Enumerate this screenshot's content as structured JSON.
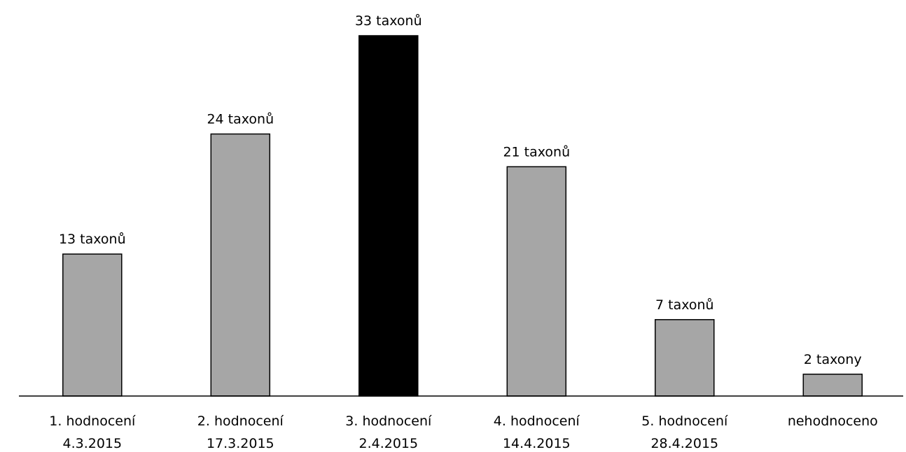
{
  "chart_data": {
    "type": "bar",
    "categories": [
      [
        "1. hodnocení",
        "4.3.2015"
      ],
      [
        "2. hodnocení",
        "17.3.2015"
      ],
      [
        "3. hodnocení",
        "2.4.2015"
      ],
      [
        "4. hodnocení",
        "14.4.2015"
      ],
      [
        "5. hodnocení",
        "28.4.2015"
      ],
      [
        "nehodnoceno"
      ]
    ],
    "values": [
      13,
      24,
      33,
      21,
      7,
      2
    ],
    "data_labels": [
      "13 taxonů",
      "24 taxonů",
      "33 taxonů",
      "21 taxonů",
      "7 taxonů",
      "2 taxony"
    ],
    "bar_colors": [
      "#a6a6a6",
      "#a6a6a6",
      "#000000",
      "#a6a6a6",
      "#a6a6a6",
      "#a6a6a6"
    ],
    "bar_stroke": "#000000",
    "axis_color": "#000000",
    "ylim": [
      0,
      33
    ],
    "grid": false,
    "legend": "none",
    "y_axis_visible": false,
    "title": "",
    "xlabel": "",
    "ylabel": ""
  }
}
